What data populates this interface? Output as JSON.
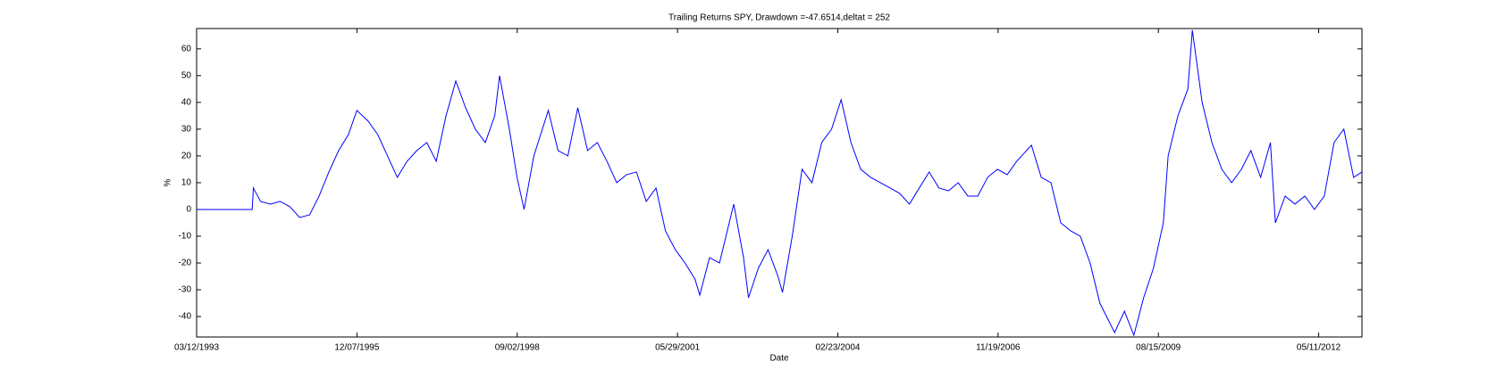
{
  "chart_data": {
    "type": "line",
    "title": "Trailing Returns SPY, Drawdown =-47.6514,deltat = 252",
    "x_label": "Date",
    "y_label": "%",
    "x": [
      "1993-03-12",
      "1994-02-22",
      "1994-03-01",
      "1994-04-15",
      "1994-06-15",
      "1994-08-15",
      "1994-10-15",
      "1994-12-15",
      "1995-02-15",
      "1995-04-15",
      "1995-06-15",
      "1995-08-15",
      "1995-10-15",
      "1995-12-07",
      "1996-02-15",
      "1996-04-15",
      "1996-06-15",
      "1996-08-15",
      "1996-10-15",
      "1996-12-15",
      "1997-02-15",
      "1997-04-15",
      "1997-06-15",
      "1997-08-15",
      "1997-10-15",
      "1997-12-15",
      "1998-02-15",
      "1998-04-15",
      "1998-05-15",
      "1998-07-15",
      "1998-09-01",
      "1998-10-15",
      "1998-12-15",
      "1999-03-15",
      "1999-05-15",
      "1999-07-15",
      "1999-09-15",
      "1999-11-15",
      "2000-01-15",
      "2000-03-15",
      "2000-05-15",
      "2000-07-15",
      "2000-09-15",
      "2000-11-15",
      "2001-01-15",
      "2001-03-15",
      "2001-05-15",
      "2001-07-15",
      "2001-09-15",
      "2001-10-15",
      "2001-12-15",
      "2002-02-15",
      "2002-05-15",
      "2002-07-15",
      "2002-08-15",
      "2002-10-15",
      "2002-12-15",
      "2003-02-15",
      "2003-03-15",
      "2003-05-15",
      "2003-07-15",
      "2003-09-15",
      "2003-11-15",
      "2004-01-15",
      "2004-03-15",
      "2004-05-15",
      "2004-07-15",
      "2004-09-15",
      "2004-11-15",
      "2005-01-15",
      "2005-03-15",
      "2005-05-15",
      "2005-07-15",
      "2005-09-15",
      "2005-11-15",
      "2006-01-15",
      "2006-03-15",
      "2006-05-15",
      "2006-07-15",
      "2006-09-15",
      "2006-11-15",
      "2007-01-15",
      "2007-03-15",
      "2007-06-15",
      "2007-08-15",
      "2007-10-15",
      "2007-12-15",
      "2008-02-15",
      "2008-04-15",
      "2008-06-15",
      "2008-08-15",
      "2008-11-15",
      "2009-01-15",
      "2009-03-15",
      "2009-05-15",
      "2009-07-15",
      "2009-09-15",
      "2009-10-15",
      "2009-12-15",
      "2010-02-15",
      "2010-03-15",
      "2010-05-15",
      "2010-07-15",
      "2010-09-15",
      "2010-11-15",
      "2011-01-15",
      "2011-03-15",
      "2011-05-15",
      "2011-07-15",
      "2011-08-15",
      "2011-10-15",
      "2011-12-15",
      "2012-02-15",
      "2012-04-15",
      "2012-06-15",
      "2012-08-15",
      "2012-10-15",
      "2012-12-15",
      "2013-02-05"
    ],
    "series": [
      {
        "name": "SPY",
        "color": "#0000ff",
        "values": [
          0,
          0,
          8,
          3,
          2,
          3,
          1,
          -3,
          -2,
          5,
          14,
          22,
          28,
          37,
          33,
          28,
          20,
          12,
          18,
          22,
          25,
          18,
          35,
          48,
          38,
          30,
          25,
          35,
          50,
          30,
          12,
          0,
          20,
          37,
          22,
          20,
          38,
          22,
          25,
          18,
          10,
          13,
          14,
          3,
          8,
          -8,
          -15,
          -20,
          -26,
          -32,
          -18,
          -20,
          2,
          -18,
          -33,
          -22,
          -15,
          -25,
          -31,
          -10,
          15,
          10,
          25,
          30,
          41,
          25,
          15,
          12,
          10,
          8,
          6,
          2,
          8,
          14,
          8,
          7,
          10,
          5,
          5,
          12,
          15,
          13,
          18,
          24,
          12,
          10,
          -5,
          -8,
          -10,
          -20,
          -35,
          -46,
          -38,
          -47,
          -33,
          -22,
          -5,
          20,
          35,
          45,
          67,
          40,
          25,
          15,
          10,
          15,
          22,
          12,
          25,
          -5,
          5,
          2,
          5,
          0,
          5,
          25,
          30,
          12,
          14
        ]
      }
    ],
    "xlim": [
      "1993-03-12",
      "2013-02-05"
    ],
    "xticks": [
      {
        "value": "1993-03-12",
        "label": "03/12/1993"
      },
      {
        "value": "1995-12-07",
        "label": "12/07/1995"
      },
      {
        "value": "1998-09-02",
        "label": "09/02/1998"
      },
      {
        "value": "2001-05-29",
        "label": "05/29/2001"
      },
      {
        "value": "2004-02-23",
        "label": "02/23/2004"
      },
      {
        "value": "2006-11-19",
        "label": "11/19/2006"
      },
      {
        "value": "2009-08-15",
        "label": "08/15/2009"
      },
      {
        "value": "2012-05-11",
        "label": "05/11/2012"
      }
    ],
    "ylim": [
      -47.65,
      67.6
    ],
    "yticks": [
      -40,
      -30,
      -20,
      -10,
      0,
      10,
      20,
      30,
      40,
      50,
      60
    ],
    "grid": false
  }
}
